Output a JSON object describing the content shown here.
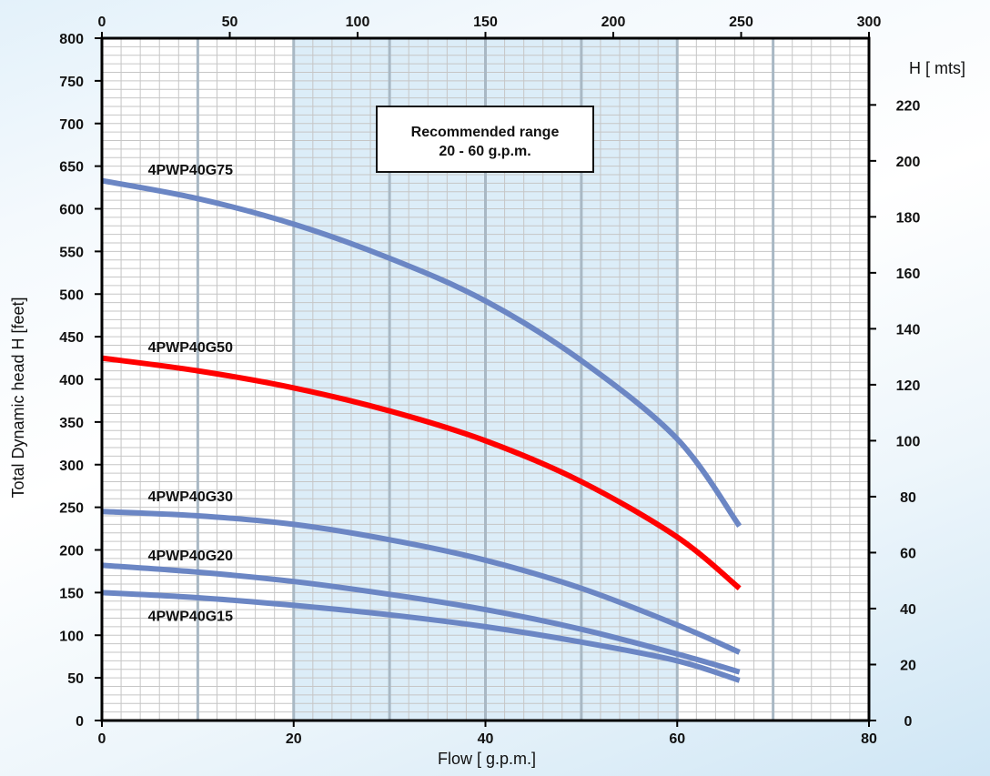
{
  "chart_data": {
    "type": "line",
    "title": "",
    "xlabel": "Flow [ g.p.m.]",
    "ylabel": "Total Dynamic head H [feet]",
    "y2label": "H [ mts]",
    "xlim": [
      0,
      80
    ],
    "ylim": [
      0,
      800
    ],
    "x_ticks": [
      0,
      20,
      40,
      60,
      80
    ],
    "y_ticks": [
      0,
      50,
      100,
      150,
      200,
      250,
      300,
      350,
      400,
      450,
      500,
      550,
      600,
      650,
      700,
      750,
      800
    ],
    "x2_ticks": [
      0,
      50,
      100,
      150,
      200,
      250,
      300
    ],
    "x2_range": [
      0,
      300
    ],
    "y2_ticks": [
      0,
      20,
      40,
      60,
      80,
      100,
      120,
      140,
      160,
      180,
      200,
      220
    ],
    "y2_range": [
      0,
      243.84
    ],
    "grid": true,
    "recommended_range": {
      "x_from": 20,
      "x_to": 60,
      "label_line1": "Recommended range",
      "label_line2": "20 - 60 g.p.m."
    },
    "series": [
      {
        "name": "4PWP40G75",
        "color": "#6b86c4",
        "x": [
          0,
          10,
          20,
          30,
          40,
          50,
          60,
          66.5
        ],
        "y": [
          633,
          612,
          582,
          542,
          492,
          422,
          330,
          228
        ]
      },
      {
        "name": "4PWP40G50",
        "color": "#ff0000",
        "x": [
          0,
          10,
          20,
          30,
          40,
          50,
          60,
          66.5
        ],
        "y": [
          425,
          410,
          390,
          363,
          328,
          280,
          215,
          155
        ]
      },
      {
        "name": "4PWP40G30",
        "color": "#6b86c4",
        "x": [
          0,
          10,
          20,
          30,
          40,
          50,
          60,
          66.5
        ],
        "y": [
          245,
          240,
          230,
          212,
          188,
          155,
          112,
          80
        ]
      },
      {
        "name": "4PWP40G20",
        "color": "#6b86c4",
        "x": [
          0,
          10,
          20,
          30,
          40,
          50,
          60,
          66.5
        ],
        "y": [
          182,
          174,
          163,
          148,
          130,
          107,
          78,
          57
        ]
      },
      {
        "name": "4PWP40G15",
        "color": "#6b86c4",
        "x": [
          0,
          10,
          20,
          30,
          40,
          50,
          60,
          66.5
        ],
        "y": [
          150,
          144,
          135,
          124,
          110,
          92,
          70,
          47
        ]
      }
    ],
    "labels": [
      {
        "text": "4PWP40G75",
        "x": 4.8,
        "y": 640
      },
      {
        "text": "4PWP40G50",
        "x": 4.8,
        "y": 432
      },
      {
        "text": "4PWP40G30",
        "x": 4.8,
        "y": 257
      },
      {
        "text": "4PWP40G20",
        "x": 4.8,
        "y": 188
      },
      {
        "text": "4PWP40G15",
        "x": 4.8,
        "y": 117
      }
    ]
  }
}
